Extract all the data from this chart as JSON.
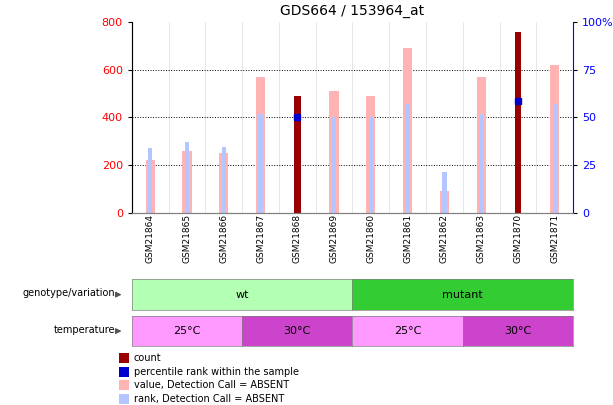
{
  "title": "GDS664 / 153964_at",
  "samples": [
    "GSM21864",
    "GSM21865",
    "GSM21866",
    "GSM21867",
    "GSM21868",
    "GSM21869",
    "GSM21860",
    "GSM21861",
    "GSM21862",
    "GSM21863",
    "GSM21870",
    "GSM21871"
  ],
  "count_values": [
    null,
    null,
    null,
    null,
    490,
    null,
    null,
    null,
    null,
    null,
    760,
    null
  ],
  "count_color": "#990000",
  "absent_value_bars": [
    220,
    260,
    250,
    570,
    null,
    510,
    490,
    690,
    90,
    570,
    null,
    620
  ],
  "absent_rank_bars": [
    270,
    295,
    275,
    415,
    null,
    400,
    400,
    455,
    170,
    415,
    null,
    455
  ],
  "absent_value_color": "#ffb3b3",
  "absent_rank_color": "#b3c6ff",
  "percentile_rank_left": [
    null,
    null,
    null,
    null,
    400,
    null,
    null,
    null,
    null,
    null,
    470,
    null
  ],
  "percentile_rank_color": "#0000cc",
  "ylim_left": [
    0,
    800
  ],
  "ylim_right": [
    0,
    100
  ],
  "yticks_left": [
    0,
    200,
    400,
    600,
    800
  ],
  "yticks_right": [
    0,
    25,
    50,
    75,
    100
  ],
  "grid_values": [
    200,
    400,
    600
  ],
  "genotype_groups": [
    {
      "label": "wt",
      "start": 0,
      "end": 5,
      "color": "#b3ffb3"
    },
    {
      "label": "mutant",
      "start": 6,
      "end": 11,
      "color": "#33cc33"
    }
  ],
  "temperature_groups": [
    {
      "label": "25°C",
      "start": 0,
      "end": 2,
      "color": "#ff99ff"
    },
    {
      "label": "30°C",
      "start": 3,
      "end": 5,
      "color": "#cc44cc"
    },
    {
      "label": "25°C",
      "start": 6,
      "end": 8,
      "color": "#ff99ff"
    },
    {
      "label": "30°C",
      "start": 9,
      "end": 11,
      "color": "#cc44cc"
    }
  ],
  "legend_items": [
    {
      "label": "count",
      "color": "#990000"
    },
    {
      "label": "percentile rank within the sample",
      "color": "#0000cc"
    },
    {
      "label": "value, Detection Call = ABSENT",
      "color": "#ffb3b3"
    },
    {
      "label": "rank, Detection Call = ABSENT",
      "color": "#b3c6ff"
    }
  ],
  "background_color": "#ffffff"
}
